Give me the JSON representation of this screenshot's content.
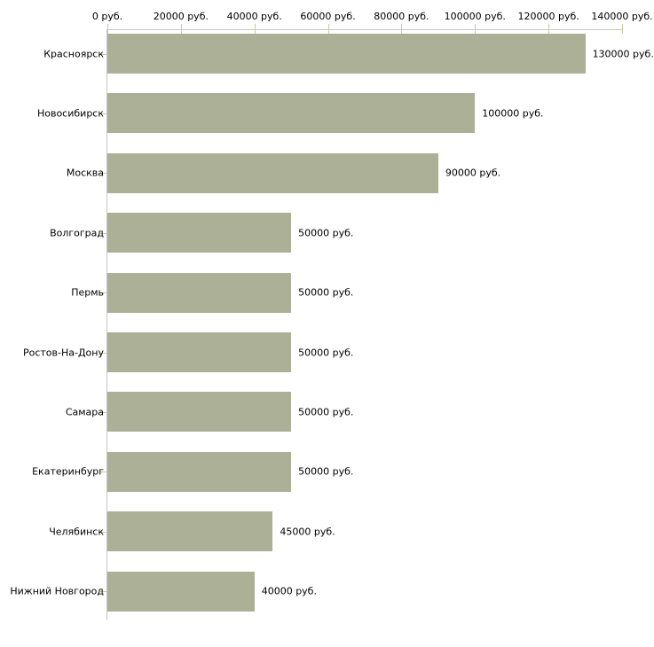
{
  "chart_data": {
    "type": "bar",
    "orientation": "horizontal",
    "title": "",
    "unit": "руб.",
    "categories": [
      "Красноярск",
      "Новосибирск",
      "Москва",
      "Волгоград",
      "Пермь",
      "Ростов-На-Дону",
      "Самара",
      "Екатеринбург",
      "Челябинск",
      "Нижний Новгород"
    ],
    "values": [
      130000,
      100000,
      90000,
      50000,
      50000,
      50000,
      50000,
      50000,
      45000,
      40000
    ],
    "value_labels": [
      "130000 руб.",
      "100000 руб.",
      "90000 руб.",
      "50000 руб.",
      "50000 руб.",
      "50000 руб.",
      "50000 руб.",
      "50000 руб.",
      "45000 руб.",
      "40000 руб."
    ],
    "x_axis": {
      "position": "top",
      "range": [
        0,
        140000
      ],
      "ticks": [
        0,
        20000,
        40000,
        60000,
        80000,
        100000,
        120000,
        140000
      ],
      "tick_labels": [
        "0 руб.",
        "20000 руб.",
        "40000 руб.",
        "60000 руб.",
        "80000 руб.",
        "100000 руб.",
        "120000 руб.",
        "140000 руб."
      ]
    },
    "grid": false,
    "legend": "none",
    "colors": {
      "bar": "#abb097",
      "tick": "#cccc99",
      "axis": "#c6c6c6",
      "text": "#000000",
      "background": "#ffffff"
    }
  }
}
